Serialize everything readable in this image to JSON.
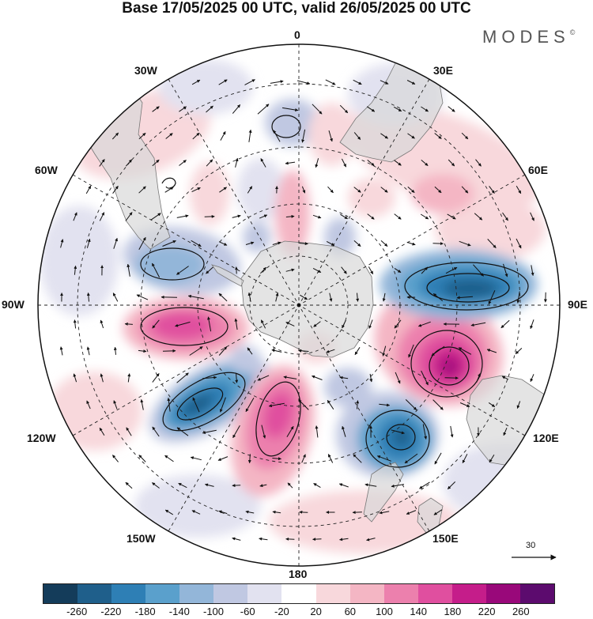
{
  "header": {
    "title": "Base 17/05/2025 00 UTC, valid 26/05/2025 00 UTC",
    "brand": "MODES",
    "brand_mark": "©"
  },
  "map": {
    "projection": "south-polar-stereographic",
    "longitude_labels": [
      {
        "id": "lon-0",
        "text": "0"
      },
      {
        "id": "lon-30e",
        "text": "30E"
      },
      {
        "id": "lon-60e",
        "text": "60E"
      },
      {
        "id": "lon-90e",
        "text": "90E"
      },
      {
        "id": "lon-120e",
        "text": "120E"
      },
      {
        "id": "lon-150e",
        "text": "150E"
      },
      {
        "id": "lon-180",
        "text": "180"
      },
      {
        "id": "lon-150w",
        "text": "150W"
      },
      {
        "id": "lon-120w",
        "text": "120W"
      },
      {
        "id": "lon-90w",
        "text": "90W"
      },
      {
        "id": "lon-60w",
        "text": "60W"
      },
      {
        "id": "lon-30w",
        "text": "30W"
      }
    ],
    "reference_vector": {
      "value": "30"
    }
  },
  "colorbar": {
    "colors": [
      "#143c5a",
      "#1f5f8b",
      "#2e7fb5",
      "#5aa0cc",
      "#93b6d9",
      "#c0c8e2",
      "#e2e2f0",
      "#ffffff",
      "#f8d8dc",
      "#f4b6c4",
      "#ec80ad",
      "#e04f9f",
      "#c51d8a",
      "#99087a",
      "#5c0b6e"
    ],
    "tick_labels": [
      "-260",
      "-220",
      "-180",
      "-140",
      "-100",
      "-60",
      "-20",
      "20",
      "60",
      "100",
      "140",
      "180",
      "220",
      "260"
    ]
  }
}
